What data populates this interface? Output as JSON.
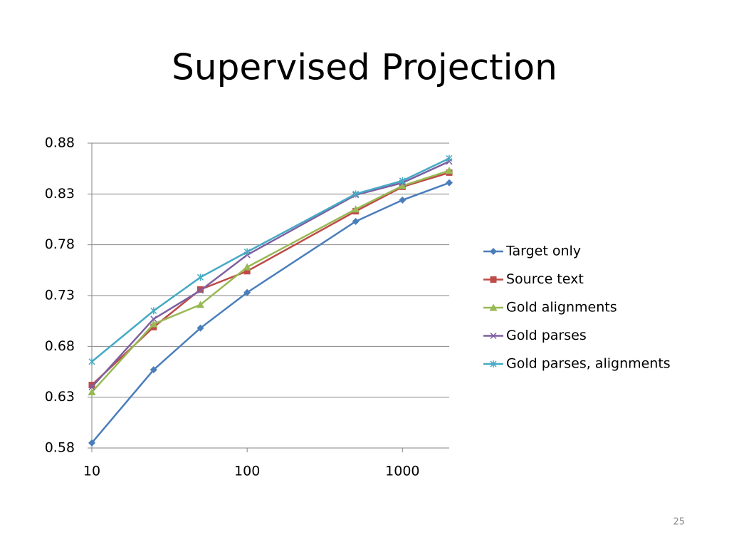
{
  "chart_data": {
    "type": "line",
    "title": "Supervised Projection",
    "x": [
      10,
      25,
      50,
      100,
      500,
      1000,
      2000
    ],
    "xscale": "log",
    "xlim": [
      10,
      2000
    ],
    "xticks": [
      10,
      100,
      1000
    ],
    "ylim": [
      0.58,
      0.88
    ],
    "yticks": [
      0.58,
      0.63,
      0.68,
      0.73,
      0.78,
      0.83,
      0.88
    ],
    "grid": true,
    "legend": "right",
    "series": [
      {
        "name": "Target only",
        "color": "#4a7ebb",
        "marker": "diamond",
        "values": [
          0.585,
          0.657,
          0.698,
          0.733,
          0.803,
          0.824,
          0.841
        ]
      },
      {
        "name": "Source text",
        "color": "#be4b48",
        "marker": "square",
        "values": [
          0.642,
          0.699,
          0.736,
          0.754,
          0.813,
          0.837,
          0.851
        ]
      },
      {
        "name": "Gold alignments",
        "color": "#98b954",
        "marker": "triangle",
        "values": [
          0.635,
          0.702,
          0.721,
          0.758,
          0.815,
          0.838,
          0.853
        ]
      },
      {
        "name": "Gold parses",
        "color": "#7d60a0",
        "marker": "x",
        "values": [
          0.64,
          0.707,
          0.735,
          0.77,
          0.829,
          0.841,
          0.862
        ]
      },
      {
        "name": "Gold parses, alignments",
        "color": "#46aac5",
        "marker": "star",
        "values": [
          0.665,
          0.715,
          0.748,
          0.773,
          0.83,
          0.843,
          0.865
        ]
      }
    ]
  },
  "page_number": "25"
}
